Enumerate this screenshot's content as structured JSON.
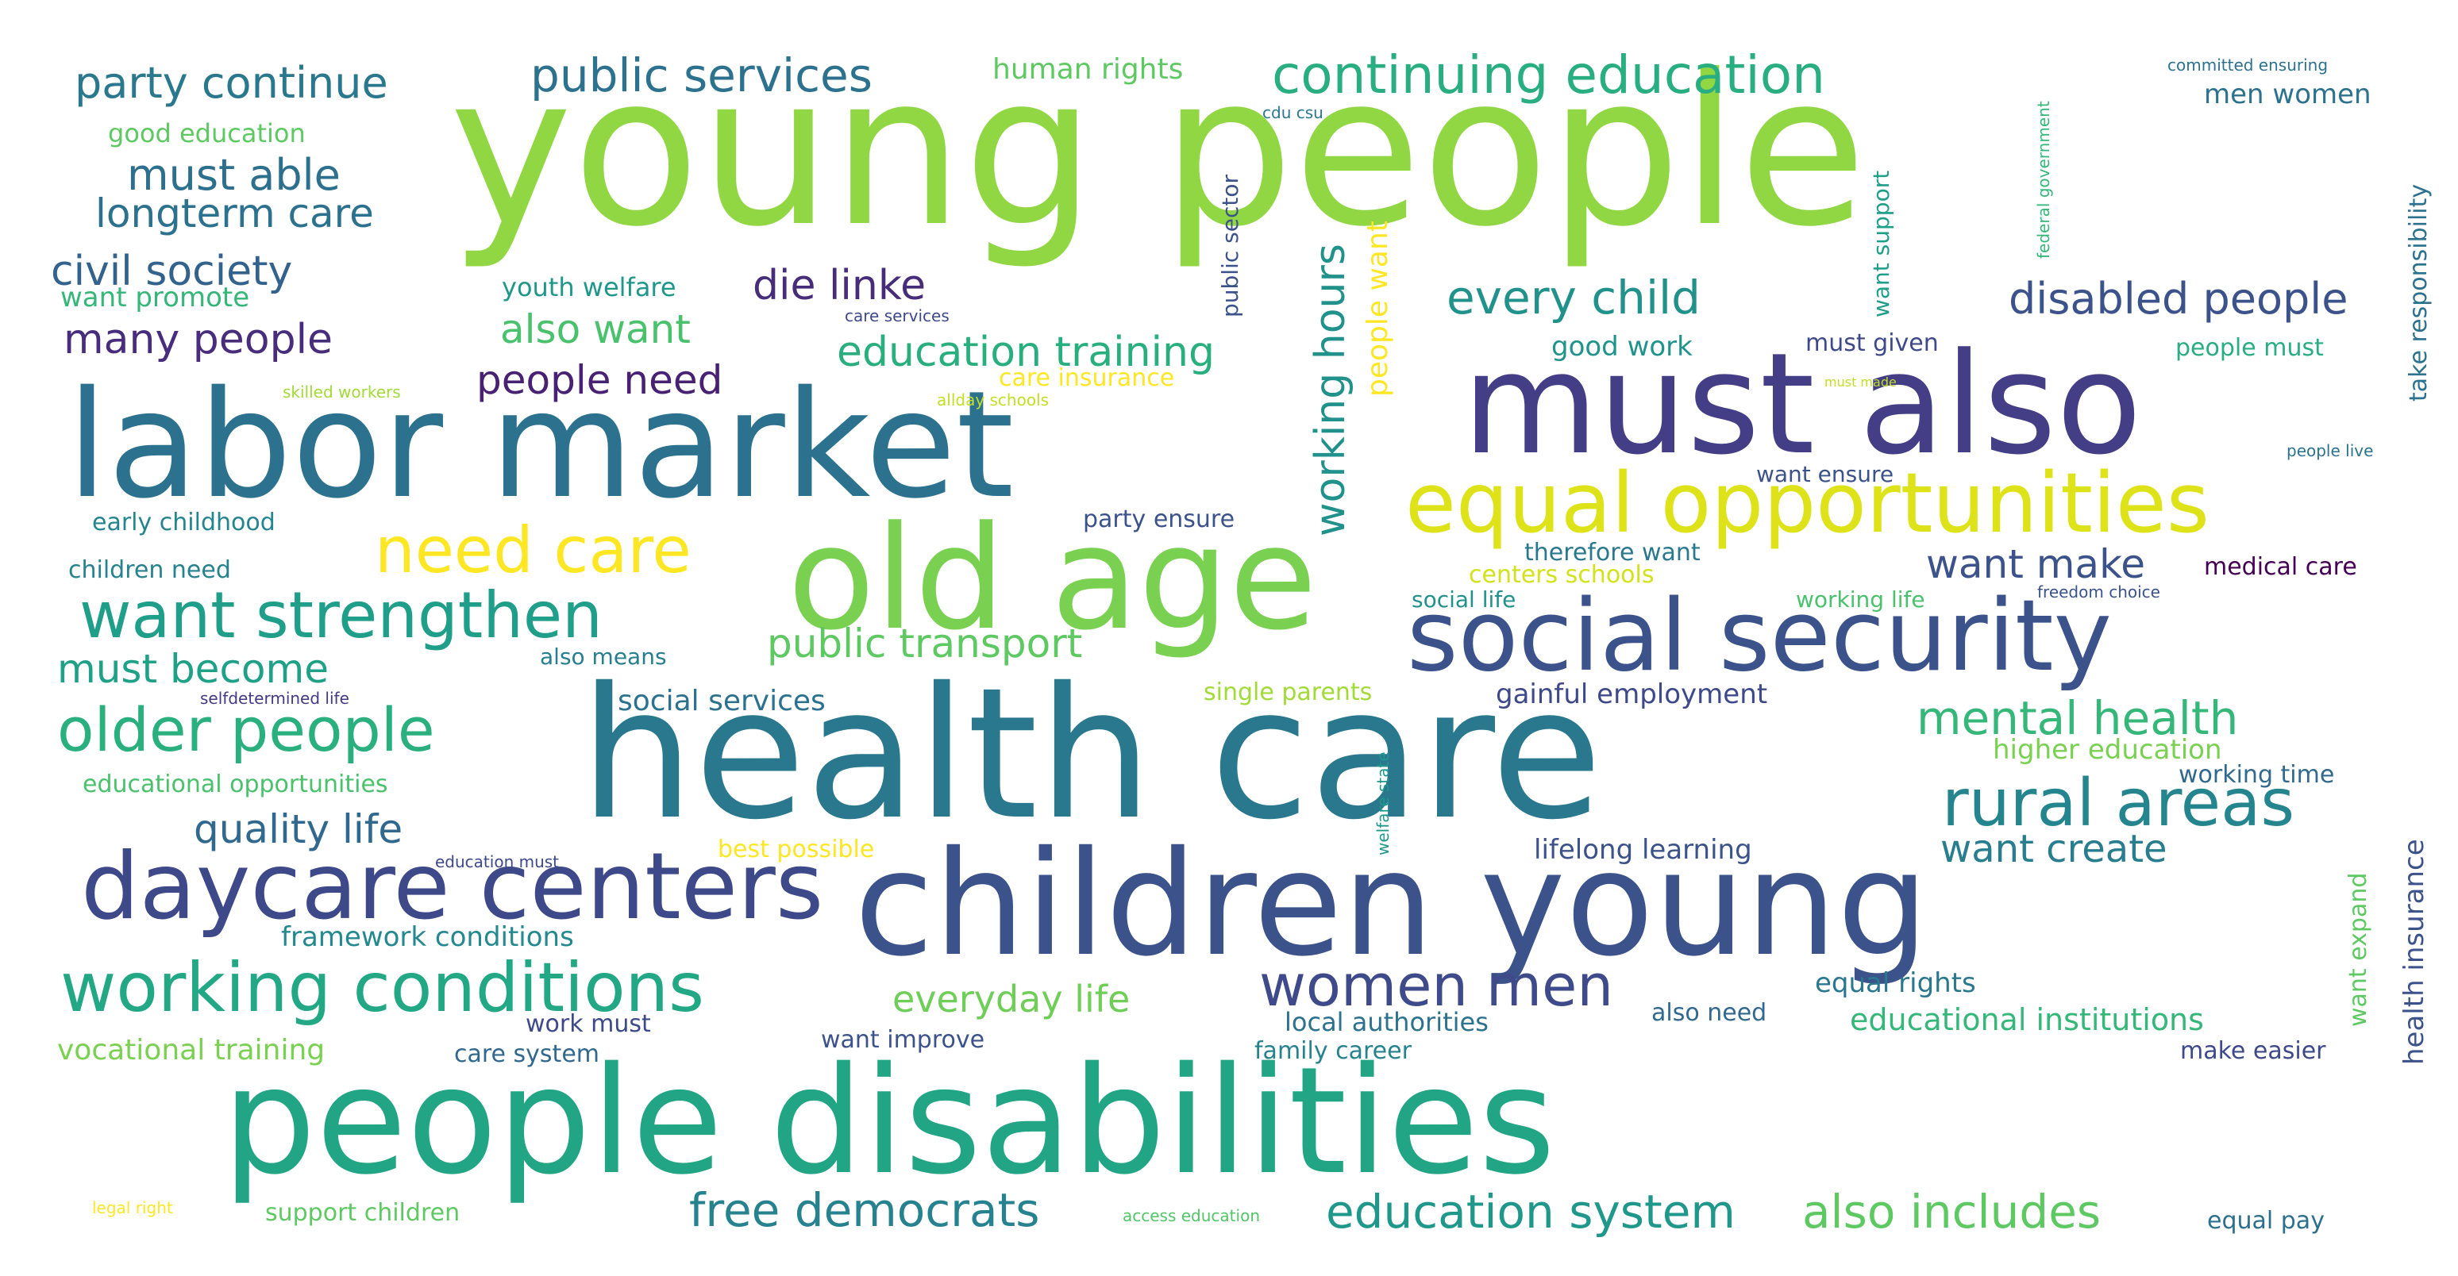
{
  "words": [
    {
      "text": "young people",
      "color": "#90d743"
    },
    {
      "text": "labor market",
      "color": "#2c728e"
    },
    {
      "text": "must also",
      "color": "#433e85"
    },
    {
      "text": "old age",
      "color": "#7ad151"
    },
    {
      "text": "social security",
      "color": "#3b528b"
    },
    {
      "text": "health care",
      "color": "#2a788e"
    },
    {
      "text": "children young",
      "color": "#3b528b"
    },
    {
      "text": "people disabilities",
      "color": "#21a585"
    },
    {
      "text": "daycare centers",
      "color": "#3e4989"
    },
    {
      "text": "working conditions",
      "color": "#22a884"
    },
    {
      "text": "equal opportunities",
      "color": "#dde318"
    },
    {
      "text": "want strengthen",
      "color": "#1f9e89"
    },
    {
      "text": "older people",
      "color": "#2ab07f"
    },
    {
      "text": "need care",
      "color": "#fde725"
    },
    {
      "text": "rural areas",
      "color": "#25858e"
    },
    {
      "text": "women men",
      "color": "#3e4a89"
    },
    {
      "text": "continuing education",
      "color": "#28ae80"
    },
    {
      "text": "public services",
      "color": "#2c728e"
    },
    {
      "text": "party continue",
      "color": "#2a788e"
    },
    {
      "text": "free democrats",
      "color": "#26828e"
    },
    {
      "text": "education system",
      "color": "#1f988b"
    },
    {
      "text": "also includes",
      "color": "#5ec962"
    },
    {
      "text": "mental health",
      "color": "#35b779"
    },
    {
      "text": "every child",
      "color": "#21918c"
    },
    {
      "text": "disabled people",
      "color": "#3b528b"
    },
    {
      "text": "education training",
      "color": "#29af7f"
    },
    {
      "text": "working hours",
      "color": "#21918c"
    },
    {
      "text": "people want",
      "color": "#fde725"
    },
    {
      "text": "must able",
      "color": "#2d708e"
    },
    {
      "text": "longterm care",
      "color": "#2c728e"
    },
    {
      "text": "civil society",
      "color": "#33638d"
    },
    {
      "text": "many people",
      "color": "#472d7b"
    },
    {
      "text": "die linke",
      "color": "#472c7a"
    },
    {
      "text": "also want",
      "color": "#4ac16d"
    },
    {
      "text": "people need",
      "color": "#482173"
    },
    {
      "text": "want make",
      "color": "#3b528b"
    },
    {
      "text": "must become",
      "color": "#1fa188"
    },
    {
      "text": "public transport",
      "color": "#5ec962"
    },
    {
      "text": "quality life",
      "color": "#31688e"
    },
    {
      "text": "want create",
      "color": "#287d8e"
    },
    {
      "text": "everyday life",
      "color": "#6ece58"
    },
    {
      "text": "human rights",
      "color": "#5ec962"
    },
    {
      "text": "good education",
      "color": "#5ec962"
    },
    {
      "text": "want promote",
      "color": "#35b779"
    },
    {
      "text": "youth welfare",
      "color": "#1f988b"
    },
    {
      "text": "care services",
      "color": "#3e4989"
    },
    {
      "text": "skilled workers",
      "color": "#a2da37"
    },
    {
      "text": "care insurance",
      "color": "#fde725"
    },
    {
      "text": "allday schools",
      "color": "#c2df23"
    },
    {
      "text": "early childhood",
      "color": "#25858e"
    },
    {
      "text": "children need",
      "color": "#26828e"
    },
    {
      "text": "party ensure",
      "color": "#3b528b"
    },
    {
      "text": "good work",
      "color": "#20938c"
    },
    {
      "text": "must given",
      "color": "#3e4989"
    },
    {
      "text": "people must",
      "color": "#28ae80"
    },
    {
      "text": "want ensure",
      "color": "#3b528b"
    },
    {
      "text": "therefore want",
      "color": "#2a788e"
    },
    {
      "text": "centers schools",
      "color": "#d2e21b"
    },
    {
      "text": "social life",
      "color": "#21918c"
    },
    {
      "text": "working life",
      "color": "#4ac16d"
    },
    {
      "text": "freedom choice",
      "color": "#3b528b"
    },
    {
      "text": "medical care",
      "color": "#440154"
    },
    {
      "text": "also means",
      "color": "#277f8e"
    },
    {
      "text": "selfdetermined life",
      "color": "#443983"
    },
    {
      "text": "social services",
      "color": "#2c728e"
    },
    {
      "text": "single parents",
      "color": "#a2da37"
    },
    {
      "text": "gainful employment",
      "color": "#3e4989"
    },
    {
      "text": "higher education",
      "color": "#7ad151"
    },
    {
      "text": "working time",
      "color": "#31688e"
    },
    {
      "text": "educational opportunities",
      "color": "#4ac16d"
    },
    {
      "text": "education must",
      "color": "#3e4989"
    },
    {
      "text": "best possible",
      "color": "#fde725"
    },
    {
      "text": "lifelong learning",
      "color": "#3b528b"
    },
    {
      "text": "framework conditions",
      "color": "#23898e"
    },
    {
      "text": "equal rights",
      "color": "#2a788e"
    },
    {
      "text": "educational institutions",
      "color": "#35b779"
    },
    {
      "text": "also need",
      "color": "#31688e"
    },
    {
      "text": "work must",
      "color": "#3e4989"
    },
    {
      "text": "local authorities",
      "color": "#2c728e"
    },
    {
      "text": "vocational training",
      "color": "#7ad151"
    },
    {
      "text": "care system",
      "color": "#31688e"
    },
    {
      "text": "want improve",
      "color": "#3b528b"
    },
    {
      "text": "family career",
      "color": "#26828e"
    },
    {
      "text": "make easier",
      "color": "#3e4989"
    },
    {
      "text": "men women",
      "color": "#2c728e"
    },
    {
      "text": "committed ensuring",
      "color": "#2c728e"
    },
    {
      "text": "cdu csu",
      "color": "#2a788e"
    },
    {
      "text": "legal right",
      "color": "#fde725"
    },
    {
      "text": "support children",
      "color": "#5ec962"
    },
    {
      "text": "access education",
      "color": "#52c569"
    },
    {
      "text": "equal pay",
      "color": "#2d708e"
    },
    {
      "text": "must made",
      "color": "#c2df23"
    },
    {
      "text": "people live",
      "color": "#2c728e"
    },
    {
      "text": "public sector",
      "color": "#3b528b"
    },
    {
      "text": "want support",
      "color": "#1f9e89"
    },
    {
      "text": "federal government",
      "color": "#35b779"
    },
    {
      "text": "take responsibility",
      "color": "#2c728e"
    },
    {
      "text": "health insurance",
      "color": "#3b528b"
    },
    {
      "text": "want expand",
      "color": "#5ec962"
    },
    {
      "text": "welfare state",
      "color": "#1f988b"
    }
  ]
}
